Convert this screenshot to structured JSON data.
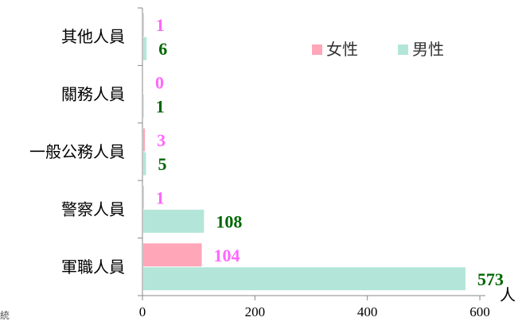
{
  "chart_data": {
    "type": "bar",
    "orientation": "horizontal",
    "categories": [
      "其他人員",
      "關務人員",
      "一般公務人員",
      "警察人員",
      "軍職人員"
    ],
    "series": [
      {
        "name": "女性",
        "values": [
          1,
          0,
          3,
          1,
          104
        ],
        "color": "#ffa6b8",
        "label_color": "#ff66ff"
      },
      {
        "name": "男性",
        "values": [
          6,
          1,
          5,
          108,
          573
        ],
        "color": "#b3e6d9",
        "label_color": "#006600"
      }
    ],
    "xlim": [
      0,
      600
    ],
    "xticks": [
      "0",
      "200",
      "400",
      "600"
    ],
    "xunit": "人",
    "legend_position": "top-right",
    "grid": false
  },
  "page": {
    "stray_char": "統"
  }
}
